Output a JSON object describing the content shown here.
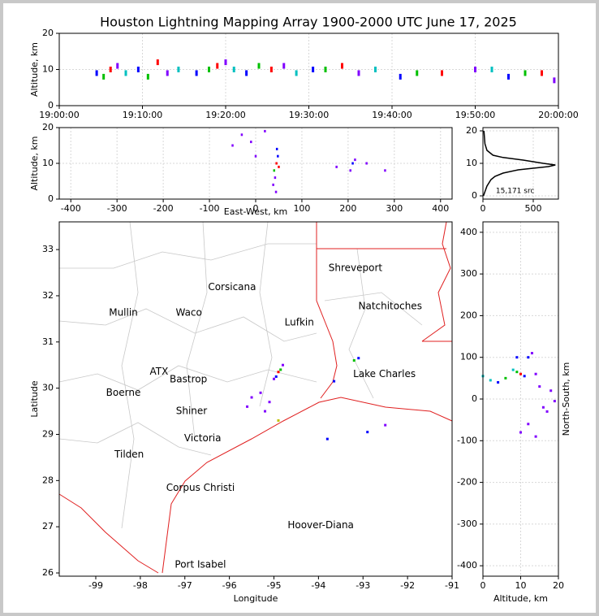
{
  "chart_data": [
    {
      "type": "scatter",
      "title": "Houston Lightning Mapping Array 1900-2000 UTC June 17, 2025",
      "ylabel": "Altitude, km",
      "xlim": [
        "19:00:00",
        "20:00:00"
      ],
      "ylim": [
        0,
        20
      ],
      "xticks": [
        "19:00:00",
        "19:10:00",
        "19:20:00",
        "19:30:00",
        "19:40:00",
        "19:50:00",
        "20:00:00"
      ],
      "yticks": [
        0,
        10,
        20
      ],
      "grid": true,
      "x": [
        "19:04:30",
        "19:05:20",
        "19:06:10",
        "19:07:00",
        "19:08:00",
        "19:09:30",
        "19:10:40",
        "19:11:50",
        "19:13:00",
        "19:14:20",
        "19:16:30",
        "19:18:00",
        "19:19:00",
        "19:20:00",
        "19:21:00",
        "19:22:30",
        "19:24:00",
        "19:25:30",
        "19:27:00",
        "19:28:30",
        "19:30:30",
        "19:32:00",
        "19:34:00",
        "19:36:00",
        "19:38:00",
        "19:41:00",
        "19:43:00",
        "19:46:00",
        "19:50:00",
        "19:52:00",
        "19:54:00",
        "19:56:00",
        "19:58:00",
        "19:59:30"
      ],
      "y": [
        9,
        8,
        10,
        11,
        9,
        10,
        8,
        12,
        9,
        10,
        9,
        10,
        11,
        12,
        10,
        9,
        11,
        10,
        11,
        9,
        10,
        10,
        11,
        9,
        10,
        8,
        9,
        9,
        10,
        10,
        8,
        9,
        9,
        7
      ],
      "colors": [
        "#0000ff",
        "#00c000",
        "#ff0000",
        "#8000ff",
        "#00c0c0",
        "#0000ff",
        "#00c000",
        "#ff0000",
        "#8000ff",
        "#00c0c0",
        "#0000ff",
        "#00c000",
        "#ff0000",
        "#8000ff",
        "#00c0c0",
        "#0000ff",
        "#00c000",
        "#ff0000",
        "#8000ff",
        "#00c0c0",
        "#0000ff",
        "#00c000",
        "#ff0000",
        "#8000ff",
        "#00c0c0",
        "#0000ff",
        "#00c000",
        "#ff0000",
        "#8000ff",
        "#00c0c0",
        "#0000ff",
        "#00c000",
        "#ff0000",
        "#8000ff"
      ]
    },
    {
      "type": "scatter",
      "xlabel": "East-West, km",
      "ylabel": "Altitude, km",
      "xlim": [
        -425,
        425
      ],
      "ylim": [
        0,
        20
      ],
      "xticks": [
        -400,
        -300,
        -200,
        -100,
        0,
        100,
        200,
        300,
        400
      ],
      "yticks": [
        0,
        10,
        20
      ],
      "grid": true,
      "x": [
        45,
        40,
        48,
        42,
        50,
        38,
        46,
        44,
        -30,
        -10,
        20,
        -50,
        0,
        210,
        205,
        215,
        175,
        280,
        240
      ],
      "y": [
        10,
        8,
        12,
        6,
        9,
        4,
        14,
        2,
        18,
        16,
        19,
        15,
        12,
        10,
        8,
        11,
        9,
        8,
        10
      ],
      "colors": [
        "#ff0000",
        "#00c000",
        "#0000ff",
        "#8000ff",
        "#ff0000",
        "#8000ff",
        "#0000ff",
        "#8000ff",
        "#8000ff",
        "#8000ff",
        "#8000ff",
        "#8000ff",
        "#8000ff",
        "#0000ff",
        "#8000ff",
        "#8000ff",
        "#8000ff",
        "#8000ff",
        "#8000ff"
      ]
    },
    {
      "type": "line",
      "xlim": [
        0,
        750
      ],
      "ylim": [
        -1,
        21
      ],
      "xticks": [
        0,
        500
      ],
      "yticks": [
        0,
        10,
        20
      ],
      "grid": true,
      "color": "#000000",
      "x": [
        5,
        40,
        80,
        120,
        200,
        350,
        650,
        720,
        600,
        400,
        200,
        100,
        40,
        20,
        15,
        10
      ],
      "y": [
        0,
        3,
        5,
        6,
        7,
        8,
        9,
        9.5,
        10,
        11,
        11.8,
        12.5,
        14,
        16,
        18,
        20
      ],
      "annotations": [
        {
          "text": "15,171 src",
          "x": 320,
          "y": 1.5,
          "color": "#000000"
        }
      ]
    },
    {
      "type": "scatter",
      "xlabel": "Longitude",
      "ylabel": "Latitude",
      "xlim": [
        -99.82,
        -91
      ],
      "ylim": [
        25.93,
        33.6
      ],
      "xticks": [
        -99,
        -98,
        -97,
        -96,
        -95,
        -94,
        -93,
        -92,
        -91
      ],
      "yticks": [
        26,
        27,
        28,
        29,
        30,
        31,
        32,
        33
      ],
      "grid": false,
      "x": [
        -94.9,
        -94.85,
        -94.95,
        -94.8,
        -95.0,
        -95.3,
        -95.5,
        -95.1,
        -95.6,
        -95.2,
        -93.2,
        -93.1,
        -93.65,
        -92.9,
        -93.8,
        -92.5,
        -94.9
      ],
      "y": [
        30.35,
        30.4,
        30.25,
        30.5,
        30.2,
        29.9,
        29.8,
        29.7,
        29.6,
        29.5,
        30.6,
        30.65,
        30.15,
        29.05,
        28.9,
        29.2,
        29.3
      ],
      "colors": [
        "#ff0000",
        "#00c000",
        "#0000ff",
        "#8000ff",
        "#8000ff",
        "#8000ff",
        "#8000ff",
        "#8000ff",
        "#8000ff",
        "#8000ff",
        "#00c000",
        "#0000ff",
        "#0000ff",
        "#0000ff",
        "#0000ff",
        "#8000ff",
        "#c0c000"
      ],
      "annotations": [
        {
          "text": "Shreveport",
          "x": -93.17,
          "y": 32.6,
          "color": "#000000"
        },
        {
          "text": "Corsicana",
          "x": -95.94,
          "y": 32.18,
          "color": "#000000"
        },
        {
          "text": "Natchitoches",
          "x": -92.39,
          "y": 31.77,
          "color": "#000000"
        },
        {
          "text": "Mullin",
          "x": -98.38,
          "y": 31.63,
          "color": "#f08040"
        },
        {
          "text": "Waco",
          "x": -96.91,
          "y": 31.63,
          "color": "#000000"
        },
        {
          "text": "Lufkin",
          "x": -94.43,
          "y": 31.42,
          "color": "#000000"
        },
        {
          "text": "ATX",
          "x": -97.58,
          "y": 30.35,
          "color": "#f08040"
        },
        {
          "text": "Bastrop",
          "x": -96.92,
          "y": 30.19,
          "color": "#000000"
        },
        {
          "text": "Lake Charles",
          "x": -92.52,
          "y": 30.3,
          "color": "#000000"
        },
        {
          "text": "Boerne",
          "x": -98.38,
          "y": 29.9,
          "color": "#000000"
        },
        {
          "text": "Shiner",
          "x": -96.85,
          "y": 29.5,
          "color": "#000000"
        },
        {
          "text": "Victoria",
          "x": -96.6,
          "y": 28.91,
          "color": "#000000"
        },
        {
          "text": "Tilden",
          "x": -98.25,
          "y": 28.56,
          "color": "#000000"
        },
        {
          "text": "Corpus Christi",
          "x": -96.65,
          "y": 27.84,
          "color": "#000000"
        },
        {
          "text": "Hoover-Diana",
          "x": -93.95,
          "y": 27.03,
          "color": "#2020e0"
        },
        {
          "text": "Port Isabel",
          "x": -96.65,
          "y": 26.18,
          "color": "#000000"
        }
      ]
    },
    {
      "type": "scatter",
      "xlabel": "Altitude, km",
      "ylabel": "North-South, km",
      "xlim": [
        0,
        20
      ],
      "ylim": [
        -425,
        425
      ],
      "xticks": [
        0,
        10,
        20
      ],
      "yticks": [
        -400,
        -300,
        -200,
        -100,
        0,
        100,
        200,
        300,
        400
      ],
      "grid": true,
      "x": [
        10,
        9,
        11,
        8,
        12,
        9,
        6,
        4,
        2,
        14,
        15,
        18,
        16,
        12,
        10,
        14,
        17,
        13,
        0,
        19
      ],
      "y": [
        60,
        65,
        55,
        70,
        100,
        100,
        50,
        40,
        45,
        60,
        30,
        20,
        -20,
        -60,
        -80,
        -90,
        -30,
        110,
        55,
        -5
      ],
      "colors": [
        "#ff0000",
        "#00c000",
        "#0000ff",
        "#00c0c0",
        "#0000ff",
        "#0000ff",
        "#00c000",
        "#0000ff",
        "#00c0c0",
        "#8000ff",
        "#8000ff",
        "#8000ff",
        "#8000ff",
        "#8000ff",
        "#8000ff",
        "#8000ff",
        "#8000ff",
        "#8000ff",
        "#00c0c0",
        "#8000ff"
      ]
    }
  ]
}
